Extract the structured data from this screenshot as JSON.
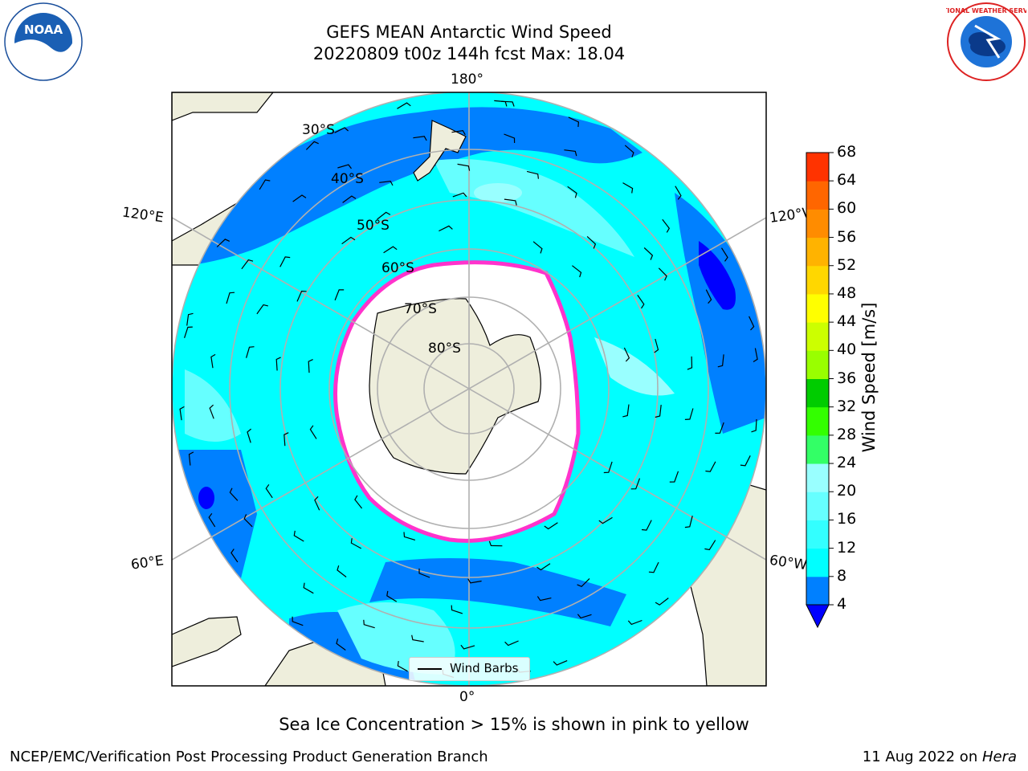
{
  "title_line1": "GEFS MEAN Antarctic Wind Speed",
  "title_line2": "20220809 t00z 144h fcst   Max: 18.04",
  "logos": {
    "left": "noaa-logo",
    "right": "nws-logo"
  },
  "logo_text": {
    "noaa": "NOAA",
    "nws": "NATIONAL WEATHER SERVICE"
  },
  "map": {
    "projection": "south-polar-stereographic",
    "lon_labels": {
      "top": "180°",
      "left": "120°E",
      "right": "120°W",
      "bottom_left": "60°E",
      "bottom_right": "60°W",
      "bottom": "0°"
    },
    "lat_labels": [
      "30°S",
      "40°S",
      "50°S",
      "60°S",
      "70°S",
      "80°S"
    ],
    "legend_label": "Wind Barbs",
    "colors": {
      "land": "#eeeedc",
      "ice_edge": "#ff33cc",
      "sea_ice_interior": "#ffffff"
    }
  },
  "colorbar": {
    "label": "Wind Speed [m/s]",
    "ticks": [
      "4",
      "8",
      "12",
      "16",
      "20",
      "24",
      "28",
      "32",
      "36",
      "40",
      "44",
      "48",
      "52",
      "56",
      "60",
      "64",
      "68"
    ],
    "colors": [
      "#0000ff",
      "#0080ff",
      "#00ffff",
      "#33ffff",
      "#66ffff",
      "#99ffff",
      "#33ff66",
      "#33ff00",
      "#00cc00",
      "#99ff00",
      "#ccff00",
      "#ffff00",
      "#ffd700",
      "#ffb300",
      "#ff8c00",
      "#ff6600",
      "#ff3300",
      "#ff0000"
    ]
  },
  "notes": {
    "ice": "Sea Ice Concentration > 15% is shown in pink to yellow",
    "footer_left": "NCEP/EMC/Verification Post Processing Product Generation Branch",
    "footer_right_prefix": "11 Aug 2022 on ",
    "footer_right_host": "Hera"
  }
}
